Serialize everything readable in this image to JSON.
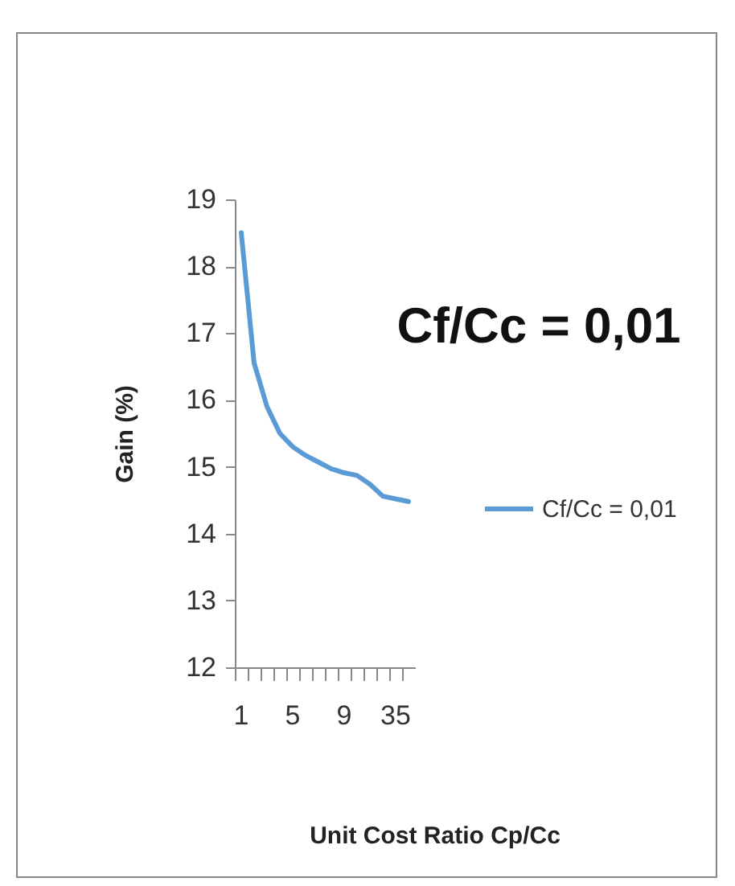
{
  "chart_data": {
    "type": "line",
    "xlabel": "Unit Cost Ratio Cp/Cc",
    "ylabel": "Gain (%)",
    "categories": [
      "1",
      null,
      null,
      null,
      "5",
      null,
      null,
      null,
      "9",
      null,
      null,
      null,
      "35",
      null
    ],
    "series": [
      {
        "name": "Cf/Cc = 0,01",
        "color": "#5b9bd5",
        "values": [
          18.5,
          16.55,
          15.9,
          15.5,
          15.3,
          15.17,
          15.07,
          14.97,
          14.91,
          14.87,
          14.74,
          14.56,
          14.52,
          14.48
        ]
      }
    ],
    "ylim": [
      12,
      19
    ],
    "yticks": [
      12,
      13,
      14,
      15,
      16,
      17,
      18,
      19
    ],
    "grid": false,
    "legend": "right",
    "marker": "none",
    "line_style": "solid",
    "annotations": [
      "Cf/Cc = 0,01"
    ]
  }
}
